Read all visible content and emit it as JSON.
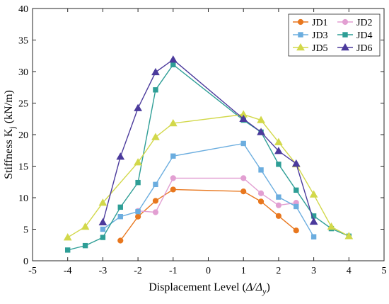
{
  "chart_data": {
    "type": "line",
    "title": "",
    "xlabel_main": "Displacement Level (",
    "xlabel_delta": "Δ/Δ",
    "xlabel_sub": "y",
    "xlabel_close": ")",
    "ylabel_main": "Stiffness K",
    "ylabel_sub": "j",
    "ylabel_unit": " (kN/m)",
    "xlim": [
      -5,
      5
    ],
    "ylim": [
      0,
      40
    ],
    "xticks": [
      -5,
      -4,
      -3,
      -2,
      -1,
      0,
      1,
      2,
      3,
      4,
      5
    ],
    "yticks": [
      0,
      5,
      10,
      15,
      20,
      25,
      30,
      35,
      40
    ],
    "grid": false,
    "legend_position": "top-right",
    "series": [
      {
        "name": "JD1",
        "color": "#E8771E",
        "marker": "circle",
        "x": [
          -2.5,
          -2,
          -1.5,
          -1,
          1,
          1.5,
          2,
          2.5
        ],
        "y": [
          3.2,
          7.0,
          9.5,
          11.3,
          11.0,
          9.4,
          7.1,
          4.8
        ]
      },
      {
        "name": "JD2",
        "color": "#E29FD2",
        "marker": "circle",
        "x": [
          -2,
          -1.5,
          -1,
          1,
          1.5,
          2,
          2.5
        ],
        "y": [
          7.9,
          7.7,
          13.1,
          13.1,
          10.7,
          8.8,
          9.2
        ]
      },
      {
        "name": "JD3",
        "color": "#6BADDF",
        "marker": "square",
        "x": [
          -3,
          -2.5,
          -2,
          -1.5,
          -1,
          1,
          1.5,
          2,
          2.5,
          3
        ],
        "y": [
          5.0,
          7.0,
          7.8,
          12.1,
          16.6,
          18.6,
          14.4,
          10.1,
          8.6,
          3.8
        ]
      },
      {
        "name": "JD4",
        "color": "#2E9E96",
        "marker": "square",
        "x": [
          -4,
          -3.5,
          -3,
          -2.5,
          -2,
          -1.5,
          -1,
          1,
          1.5,
          2,
          2.5,
          3,
          3.5,
          4
        ],
        "y": [
          1.7,
          2.4,
          3.7,
          8.5,
          12.4,
          27.1,
          31.1,
          22.3,
          20.4,
          15.3,
          11.2,
          7.1,
          5.1,
          3.9
        ]
      },
      {
        "name": "JD5",
        "color": "#D2D84A",
        "marker": "triangle",
        "x": [
          -4,
          -3.5,
          -3,
          -2,
          -1.5,
          -1,
          1,
          1.5,
          2,
          2.5,
          3,
          3.5,
          4
        ],
        "y": [
          3.7,
          5.4,
          9.2,
          15.6,
          19.6,
          21.8,
          23.2,
          22.3,
          18.8,
          15.3,
          10.5,
          5.4,
          3.9
        ]
      },
      {
        "name": "JD6",
        "color": "#4B3A9C",
        "marker": "triangle",
        "x": [
          -3,
          -2.5,
          -2,
          -1.5,
          -1,
          1,
          1.5,
          2,
          2.5,
          3
        ],
        "y": [
          6.1,
          16.5,
          24.2,
          29.9,
          31.9,
          22.5,
          20.4,
          17.4,
          15.4,
          6.2
        ]
      }
    ]
  }
}
